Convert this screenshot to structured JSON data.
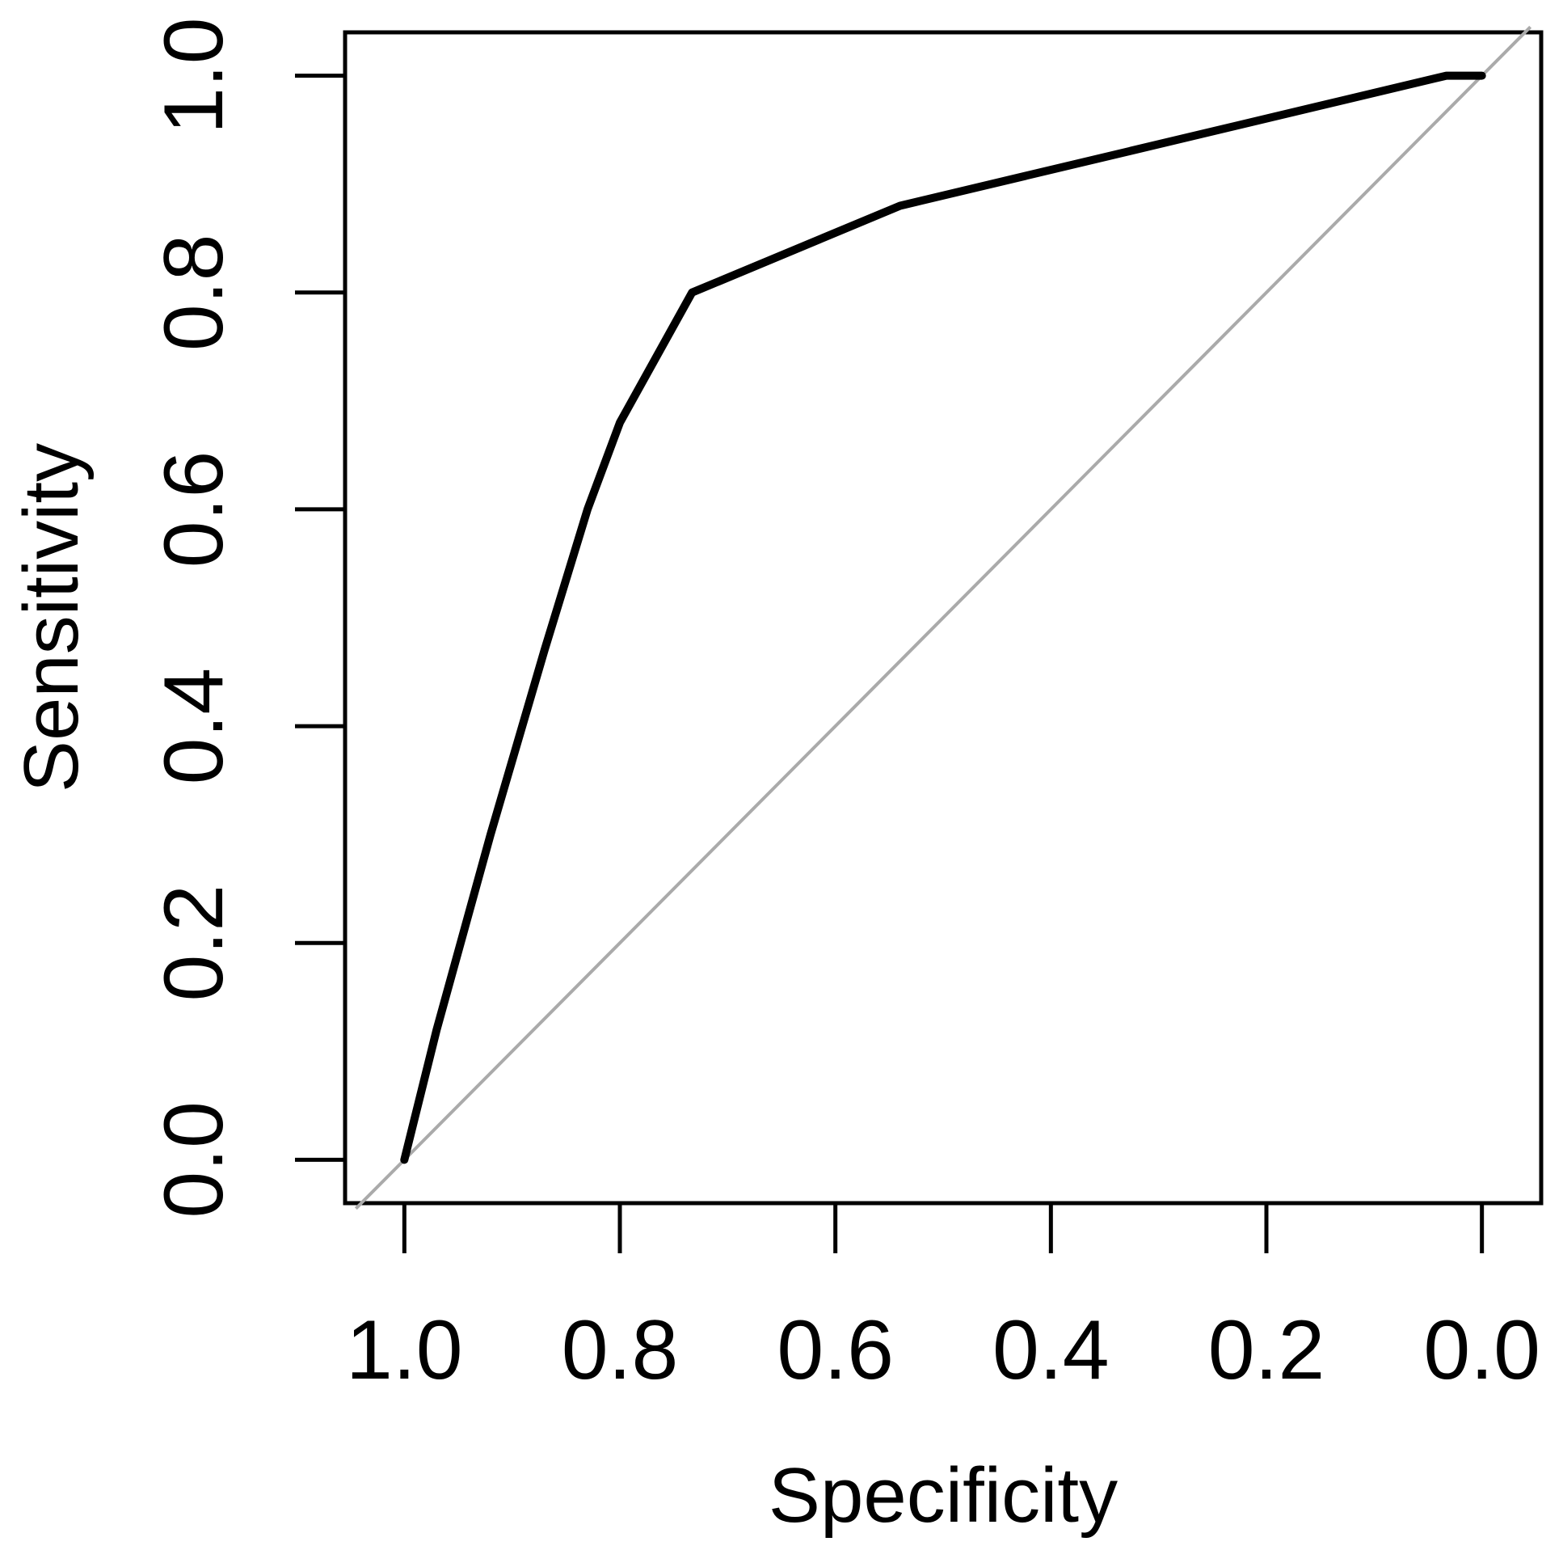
{
  "chart_data": {
    "type": "line",
    "title": "",
    "xlabel": "Specificity",
    "ylabel": "Sensitivity",
    "x_reversed": true,
    "xlim": [
      1.055,
      -0.055
    ],
    "ylim": [
      -0.04,
      1.04
    ],
    "x_ticks": [
      1.0,
      0.8,
      0.6,
      0.4,
      0.2,
      0.0
    ],
    "x_tick_labels": [
      "1.0",
      "0.8",
      "0.6",
      "0.4",
      "0.2",
      "0.0"
    ],
    "y_ticks": [
      0.0,
      0.2,
      0.4,
      0.6,
      0.8,
      1.0
    ],
    "y_tick_labels": [
      "0.0",
      "0.2",
      "0.4",
      "0.6",
      "0.8",
      "1.0"
    ],
    "grid": false,
    "legend": "none",
    "series": [
      {
        "specificity": [
          1.0,
          0.97,
          0.92,
          0.87,
          0.83,
          0.8,
          0.733,
          0.54,
          0.033,
          0.0
        ],
        "sensitivity": [
          0.0,
          0.12,
          0.3,
          0.47,
          0.6,
          0.68,
          0.8,
          0.88,
          1.0,
          1.0
        ],
        "color": "#000000"
      }
    ],
    "reference_line": {
      "from": [
        1.0,
        0.0
      ],
      "to": [
        0.0,
        1.0
      ],
      "color": "#aaaaaa"
    }
  }
}
